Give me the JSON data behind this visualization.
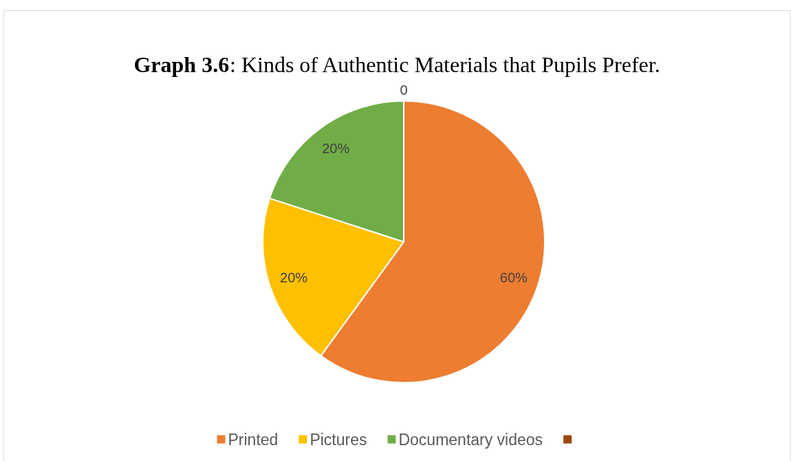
{
  "chart_data": {
    "type": "pie",
    "title": "Graph 3.6: Kinds of Authentic Materials that Pupils Prefer.",
    "categories": [
      "Printed",
      "Pictures",
      "Documentary videos",
      null
    ],
    "values": [
      60,
      20,
      20,
      0
    ],
    "colors": [
      "#ed7d31",
      "#ffc000",
      "#70ad47",
      "#9e480e"
    ],
    "value_labels": [
      "60%",
      "20%",
      "20%",
      "0"
    ],
    "legend": "bottom"
  }
}
